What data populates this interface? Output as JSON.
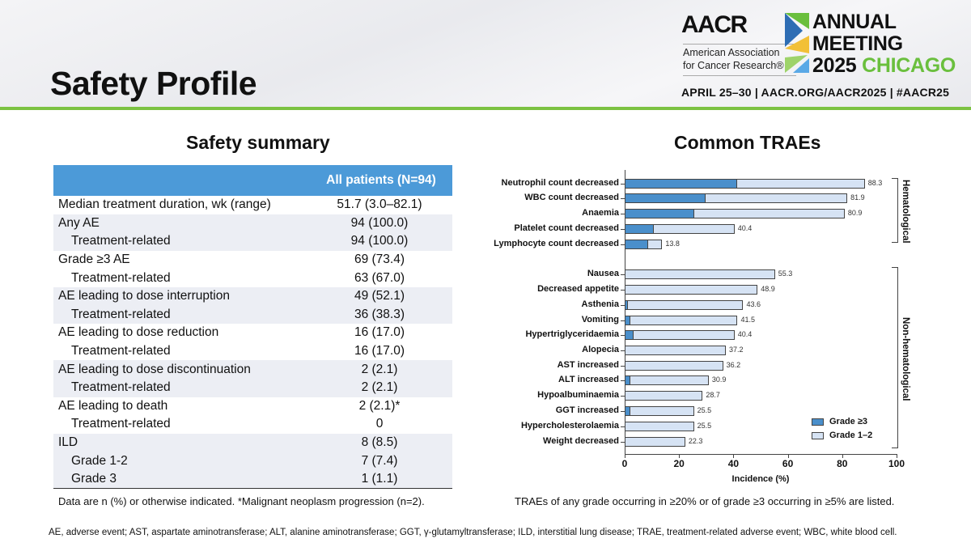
{
  "header": {
    "title": "Safety Profile",
    "logo": {
      "org": "AACR",
      "org_name_line1": "American Association",
      "org_name_line2": "for Cancer Research®",
      "event_line1": "ANNUAL",
      "event_line2": "MEETING",
      "year": "2025",
      "city": "CHICAGO",
      "dates": "APRIL 25–30 | AACR.ORG/AACR2025 | #AACR25"
    }
  },
  "summary": {
    "heading": "Safety summary",
    "column_header": "All patients (N=94)",
    "rows": [
      {
        "label": "Median treatment duration, wk (range)",
        "value": "51.7 (3.0–82.1)"
      },
      {
        "label": "Any AE",
        "value": "94 (100.0)"
      },
      {
        "label": "Treatment-related",
        "value": "94 (100.0)"
      },
      {
        "label": "Grade ≥3 AE",
        "value": "69 (73.4)"
      },
      {
        "label": "Treatment-related",
        "value": "63 (67.0)"
      },
      {
        "label": "AE leading to dose interruption",
        "value": "49 (52.1)"
      },
      {
        "label": "Treatment-related",
        "value": "36 (38.3)"
      },
      {
        "label": "AE leading to dose reduction",
        "value": "16 (17.0)"
      },
      {
        "label": "Treatment-related",
        "value": "16 (17.0)"
      },
      {
        "label": "AE leading to dose discontinuation",
        "value": "2 (2.1)"
      },
      {
        "label": "Treatment-related",
        "value": "2 (2.1)"
      },
      {
        "label": "AE leading to death",
        "value": "2 (2.1)*"
      },
      {
        "label": "Treatment-related",
        "value": "0"
      },
      {
        "label": "ILD",
        "value": "8 (8.5)"
      },
      {
        "label": "Grade 1-2",
        "value": "7 (7.4)"
      },
      {
        "label": "Grade 3",
        "value": "1 (1.1)"
      }
    ],
    "note": "Data are n (%) or otherwise indicated. *Malignant neoplasm progression (n=2)."
  },
  "chart_heading": "Common TRAEs",
  "chart_data": {
    "type": "bar",
    "orientation": "horizontal",
    "stacked": true,
    "categories": [
      "Neutrophil count decreased",
      "WBC count decreased",
      "Anaemia",
      "Platelet count decreased",
      "Lymphocyte count decreased",
      "Nausea",
      "Decreased appetite",
      "Asthenia",
      "Vomiting",
      "Hypertriglyceridaemia",
      "Alopecia",
      "AST increased",
      "ALT increased",
      "Hypoalbuminaemia",
      "GGT increased",
      "Hypercholesterolaemia",
      "Weight decreased"
    ],
    "groups": [
      {
        "name": "Hematological",
        "count": 5
      },
      {
        "name": "Non-hematological",
        "count": 12
      }
    ],
    "totals": [
      88.3,
      81.9,
      80.9,
      40.4,
      13.8,
      55.3,
      48.9,
      43.6,
      41.5,
      40.4,
      37.2,
      36.2,
      30.9,
      28.7,
      25.5,
      25.5,
      22.3
    ],
    "total_labels": [
      "88.3",
      "81.9",
      "80.9",
      "40.4",
      "13.8",
      "55.3",
      "48.9",
      "43.6",
      "41.5",
      "40.4",
      "37.2",
      "36.2",
      "30.9",
      "28.7",
      "25.5",
      "25.5",
      "22.3"
    ],
    "series": [
      {
        "name": "Grade ≥3",
        "color": "#4a8fcb",
        "values": [
          41.5,
          29.8,
          25.5,
          10.6,
          8.5,
          0,
          0,
          1.1,
          2.1,
          3.2,
          0,
          0,
          2.1,
          0,
          2.1,
          0,
          0
        ]
      },
      {
        "name": "Grade 1–2",
        "color": "#d6e3f4"
      }
    ],
    "xlabel": "Incidence (%)",
    "xlim": [
      0,
      100
    ],
    "xticks": [
      "0",
      "20",
      "40",
      "60",
      "80",
      "100"
    ],
    "legend": "bottom-right"
  },
  "chart_note": "TRAEs of any grade occurring in ≥20% or of grade ≥3 occurring in ≥5% are listed.",
  "footnote": "AE, adverse event; AST, aspartate aminotransferase; ALT, alanine aminotransferase; GGT, γ-glutamyltransferase; ILD, interstitial lung disease; TRAE, treatment-related adverse event; WBC, white blood cell."
}
